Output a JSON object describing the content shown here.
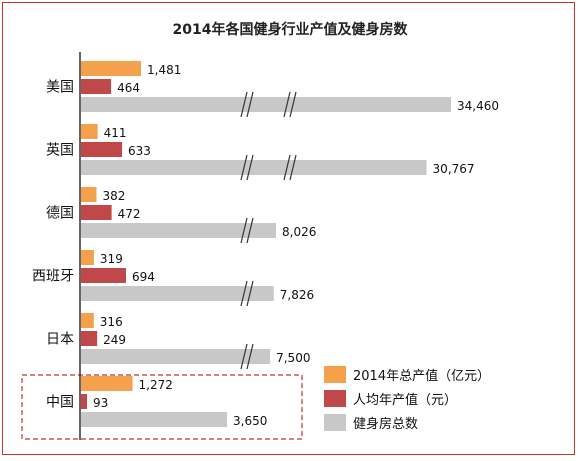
{
  "chart_data": {
    "type": "bar",
    "title": "2014年各国健身行业产值及健身房数",
    "categories": [
      "美国",
      "英国",
      "德国",
      "西班牙",
      "日本",
      "中国"
    ],
    "series": [
      {
        "name": "2014年总产值（亿元）",
        "color": "#f5a04a",
        "values": [
          1481,
          411,
          382,
          319,
          316,
          1272
        ],
        "labels": [
          "1,481",
          "411",
          "382",
          "319",
          "316",
          "1,272"
        ]
      },
      {
        "name": "人均年产值（元）",
        "color": "#c0474a",
        "values": [
          464,
          633,
          472,
          694,
          249,
          93
        ],
        "labels": [
          "464",
          "633",
          "472",
          "694",
          "249",
          "93"
        ]
      },
      {
        "name": "健身房总数",
        "color": "#c8c8c8",
        "values": [
          34460,
          30767,
          8026,
          7826,
          7500,
          3650
        ],
        "labels": [
          "34,460",
          "30,767",
          "8,026",
          "7,826",
          "7,500",
          "3,650"
        ]
      }
    ],
    "axis_breaks": true,
    "highlighted_category": "中国",
    "legend_position": "bottom-right",
    "orientation": "horizontal",
    "grid": false
  }
}
